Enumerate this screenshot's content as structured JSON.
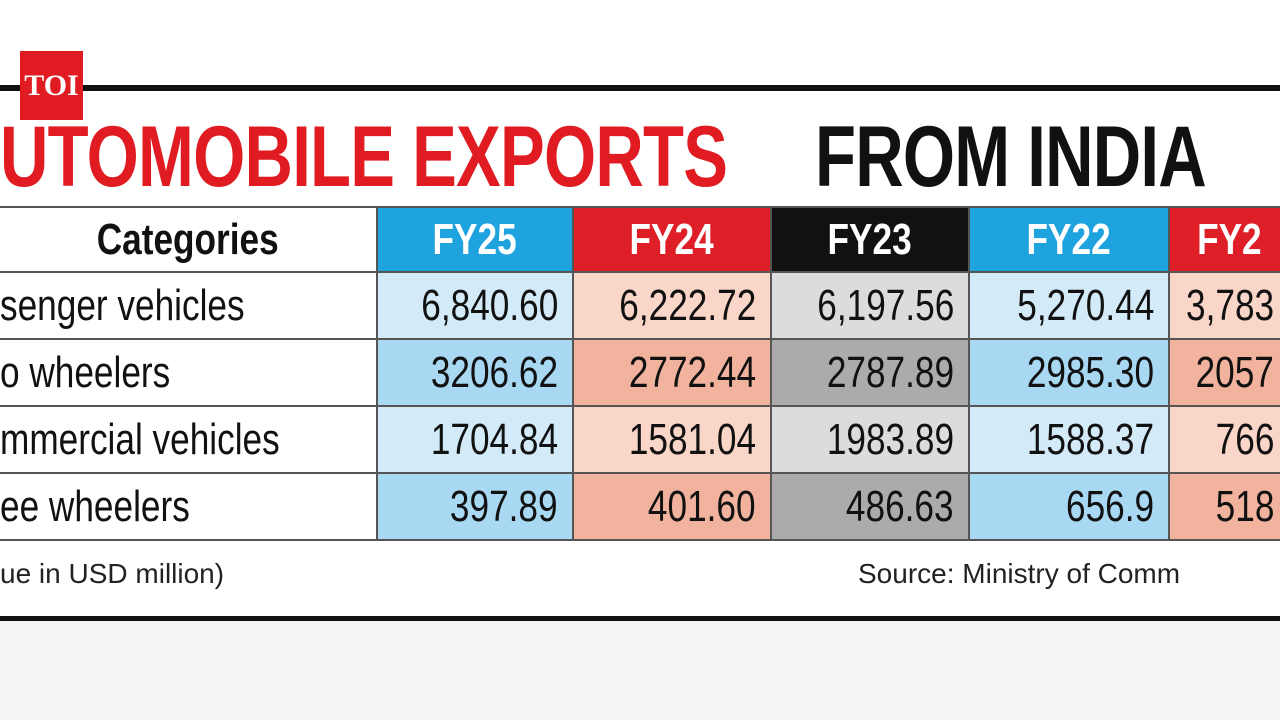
{
  "logo": "TOI",
  "title": {
    "red": "UTOMOBILE EXPORTS",
    "black": "FROM INDIA"
  },
  "table": {
    "header": [
      "Categories",
      "FY25",
      "FY24",
      "FY23",
      "FY22",
      "FY2"
    ],
    "rows": [
      [
        "senger vehicles",
        "6,840.60",
        "6,222.72",
        "6,197.56",
        "5,270.44",
        "3,783"
      ],
      [
        "o wheelers",
        "3206.62",
        "2772.44",
        "2787.89",
        "2985.30",
        "2057"
      ],
      [
        "mmercial vehicles",
        "1704.84",
        "1581.04",
        "1983.89",
        "1588.37",
        "766"
      ],
      [
        "ee wheelers",
        "397.89",
        "401.60",
        "486.63",
        "656.9",
        "518"
      ]
    ]
  },
  "footer": {
    "note": "ue in USD million)",
    "source": "Source: Ministry of Comm"
  }
}
